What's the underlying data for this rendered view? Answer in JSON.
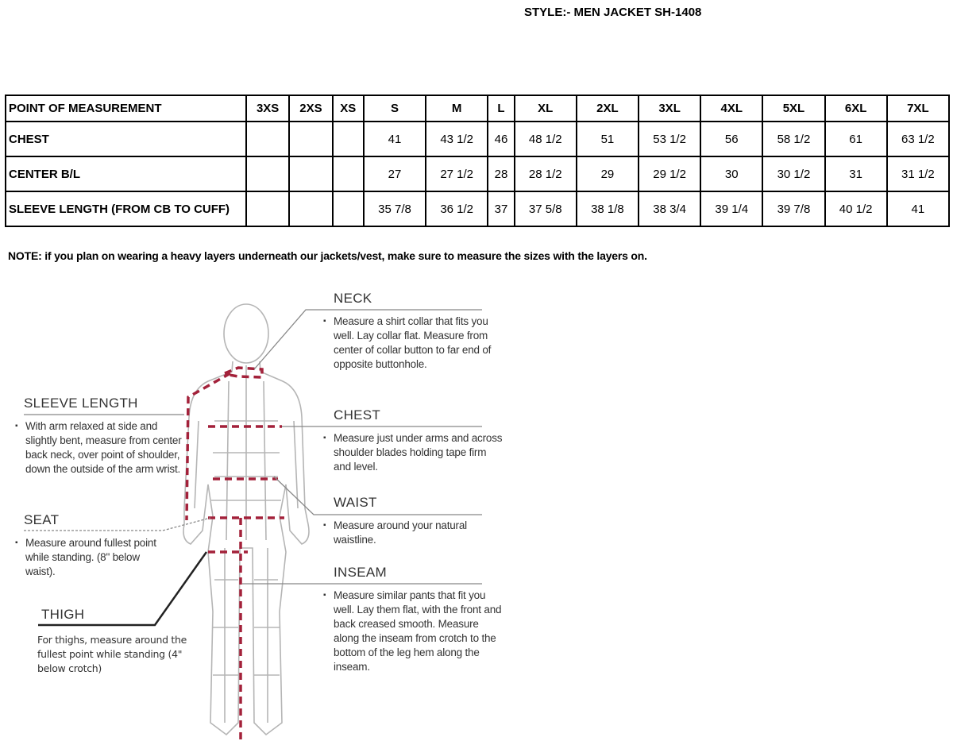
{
  "style_title": "STYLE:- MEN JACKET    SH-1408",
  "table": {
    "headers": [
      "POINT OF MEASUREMENT",
      "3XS",
      "2XS",
      "XS",
      "S",
      "M",
      "L",
      "XL",
      "2XL",
      "3XL",
      "4XL",
      "5XL",
      "6XL",
      "7XL"
    ],
    "rows": [
      [
        "CHEST",
        "",
        "",
        "",
        "41",
        "43 1/2",
        "46",
        "48 1/2",
        "51",
        "53 1/2",
        "56",
        "58 1/2",
        "61",
        "63 1/2"
      ],
      [
        "CENTER B/L",
        "",
        "",
        "",
        "27",
        "27 1/2",
        "28",
        "28 1/2",
        "29",
        "29 1/2",
        "30",
        "30 1/2",
        "31",
        "31 1/2"
      ],
      [
        "SLEEVE LENGTH (FROM CB TO CUFF)",
        "",
        "",
        "",
        "35 7/8",
        "36 1/2",
        "37",
        "37 5/8",
        "38 1/8",
        "38 3/4",
        "39 1/4",
        "39 7/8",
        "40 1/2",
        "41"
      ]
    ]
  },
  "note": "NOTE: if you plan on wearing a heavy layers underneath our jackets/vest, make sure to measure the sizes with the layers on.",
  "guide": {
    "neck": {
      "label": "NECK",
      "text": "Measure a shirt collar that fits you well. Lay collar flat. Measure from center of collar button to far end of opposite buttonhole."
    },
    "chest": {
      "label": "CHEST",
      "text": "Measure just under arms and across shoulder blades holding tape firm and level."
    },
    "waist": {
      "label": "WAIST",
      "text": "Measure around your natural waistline."
    },
    "inseam": {
      "label": "INSEAM",
      "text": "Measure similar pants that fit you well. Lay them flat, with the front and back creased smooth. Measure along the inseam from crotch to the bottom of the leg hem along the inseam."
    },
    "sleeve": {
      "label": "SLEEVE LENGTH",
      "text": "With arm relaxed at side and slightly bent, measure from center back neck, over point of shoulder, down the outside of the arm wrist."
    },
    "seat": {
      "label": "SEAT",
      "text": "Measure around fullest point while standing. (8\" below waist)."
    },
    "thigh": {
      "label": "THIGH",
      "text": "For thighs, measure around the fullest point while standing (4\" below crotch)"
    }
  },
  "colors": {
    "measure_line": "#a3213a",
    "figure": "#b5b5b5"
  }
}
